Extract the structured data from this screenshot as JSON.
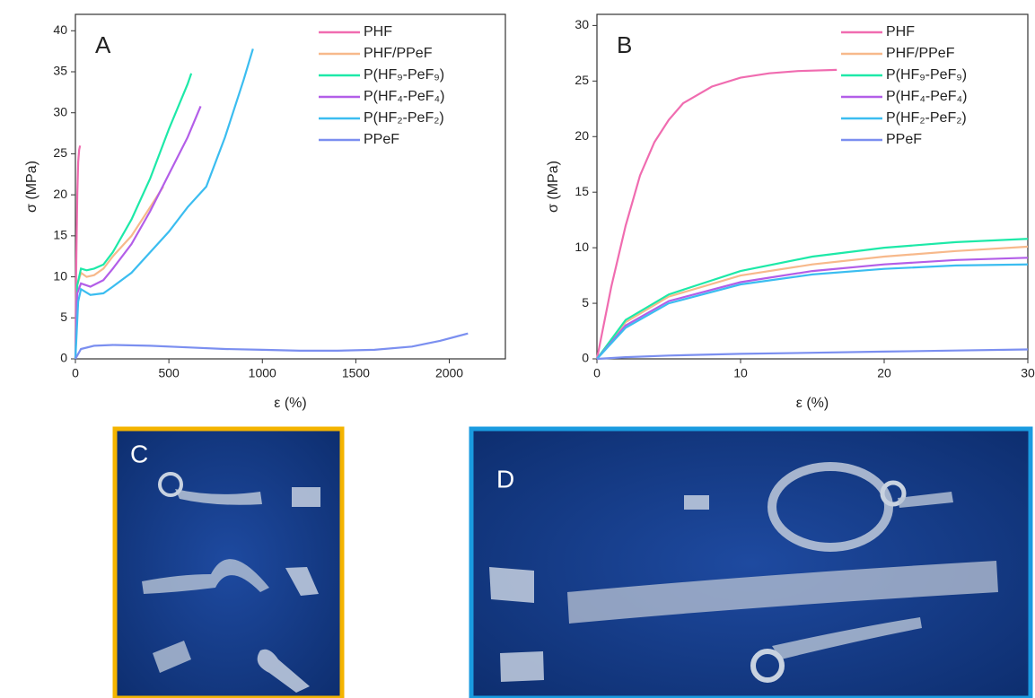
{
  "chart_data": [
    {
      "type": "line",
      "annotation": "A",
      "x_label": "ε (%)",
      "y_label": "σ (MPa)",
      "xlim": [
        0,
        2300
      ],
      "xticks": [
        0,
        500,
        1000,
        1500,
        2000
      ],
      "ylim": [
        0,
        42
      ],
      "yticks": [
        0,
        5,
        10,
        15,
        20,
        25,
        30,
        35,
        40
      ],
      "legend": "upper right",
      "series": [
        {
          "name": "PHF",
          "color": "#f06cb0",
          "x": [
            0,
            5,
            10,
            15,
            20,
            25
          ],
          "values": [
            0,
            12,
            20,
            24,
            25.5,
            26
          ]
        },
        {
          "name": "PHF/PPeF",
          "color": "#f7b98b",
          "x": [
            0,
            10,
            30,
            60,
            100,
            150,
            200,
            300,
            400,
            470
          ],
          "values": [
            0,
            9,
            10.5,
            10,
            10.2,
            11,
            12.5,
            15,
            18.5,
            21
          ]
        },
        {
          "name": "P(HF₉-PeF₉)",
          "color": "#1de9a8",
          "x": [
            0,
            10,
            30,
            60,
            100,
            150,
            200,
            300,
            400,
            500,
            600,
            620
          ],
          "values": [
            0,
            9,
            11,
            10.8,
            11,
            11.5,
            13,
            17,
            22,
            28,
            33.5,
            34.8
          ]
        },
        {
          "name": "P(HF₄-PeF₄)",
          "color": "#b35ee8",
          "x": [
            0,
            10,
            30,
            80,
            150,
            200,
            300,
            400,
            500,
            600,
            670
          ],
          "values": [
            0,
            8,
            9.2,
            8.8,
            9.6,
            11,
            14,
            18,
            22.5,
            27,
            30.8
          ]
        },
        {
          "name": "P(HF₂-PeF₂)",
          "color": "#3bbdf0",
          "x": [
            0,
            15,
            30,
            80,
            150,
            200,
            300,
            400,
            500,
            600,
            700,
            800,
            900,
            950
          ],
          "values": [
            0,
            7,
            8.5,
            7.8,
            8,
            8.8,
            10.5,
            13,
            15.5,
            18.5,
            21,
            27,
            34,
            37.8
          ]
        },
        {
          "name": "PPeF",
          "color": "#7b8ff0",
          "x": [
            0,
            30,
            100,
            200,
            400,
            600,
            800,
            1000,
            1200,
            1400,
            1600,
            1800,
            1950,
            2100
          ],
          "values": [
            0,
            1.2,
            1.6,
            1.7,
            1.6,
            1.4,
            1.2,
            1.1,
            1,
            1,
            1.1,
            1.5,
            2.2,
            3.1
          ]
        }
      ]
    },
    {
      "type": "line",
      "annotation": "B",
      "x_label": "ε (%)",
      "y_label": "σ (MPa)",
      "xlim": [
        0,
        30
      ],
      "xticks": [
        0,
        10,
        20,
        30
      ],
      "ylim": [
        0,
        31
      ],
      "yticks": [
        0,
        5,
        10,
        15,
        20,
        25,
        30
      ],
      "legend": "upper right",
      "series": [
        {
          "name": "PHF",
          "color": "#f06cb0",
          "x": [
            0,
            1,
            2,
            3,
            4,
            5,
            6,
            8,
            10,
            12,
            14,
            16.7
          ],
          "values": [
            0,
            6.5,
            12,
            16.5,
            19.5,
            21.5,
            23,
            24.5,
            25.3,
            25.7,
            25.9,
            26
          ]
        },
        {
          "name": "PHF/PPeF",
          "color": "#f7b98b",
          "x": [
            0,
            2,
            5,
            10,
            15,
            20,
            25,
            30
          ],
          "values": [
            0,
            3.3,
            5.6,
            7.5,
            8.5,
            9.2,
            9.7,
            10.1
          ]
        },
        {
          "name": "P(HF₉-PeF₉)",
          "color": "#1de9a8",
          "x": [
            0,
            2,
            5,
            10,
            15,
            20,
            25,
            30
          ],
          "values": [
            0,
            3.5,
            5.8,
            7.9,
            9.2,
            10,
            10.5,
            10.8
          ]
        },
        {
          "name": "P(HF₄-PeF₄)",
          "color": "#b35ee8",
          "x": [
            0,
            2,
            5,
            10,
            15,
            20,
            25,
            30
          ],
          "values": [
            0,
            3,
            5.2,
            6.9,
            7.9,
            8.5,
            8.9,
            9.1
          ]
        },
        {
          "name": "P(HF₂-PeF₂)",
          "color": "#3bbdf0",
          "x": [
            0,
            2,
            5,
            10,
            15,
            20,
            25,
            30
          ],
          "values": [
            0,
            2.8,
            5,
            6.7,
            7.6,
            8.1,
            8.4,
            8.5
          ]
        },
        {
          "name": "PPeF",
          "color": "#7b8ff0",
          "x": [
            0,
            2,
            5,
            10,
            15,
            20,
            25,
            30
          ],
          "values": [
            0,
            0.15,
            0.3,
            0.45,
            0.55,
            0.65,
            0.75,
            0.85
          ]
        }
      ]
    }
  ],
  "photos": [
    {
      "label": "C"
    },
    {
      "label": "D"
    }
  ]
}
